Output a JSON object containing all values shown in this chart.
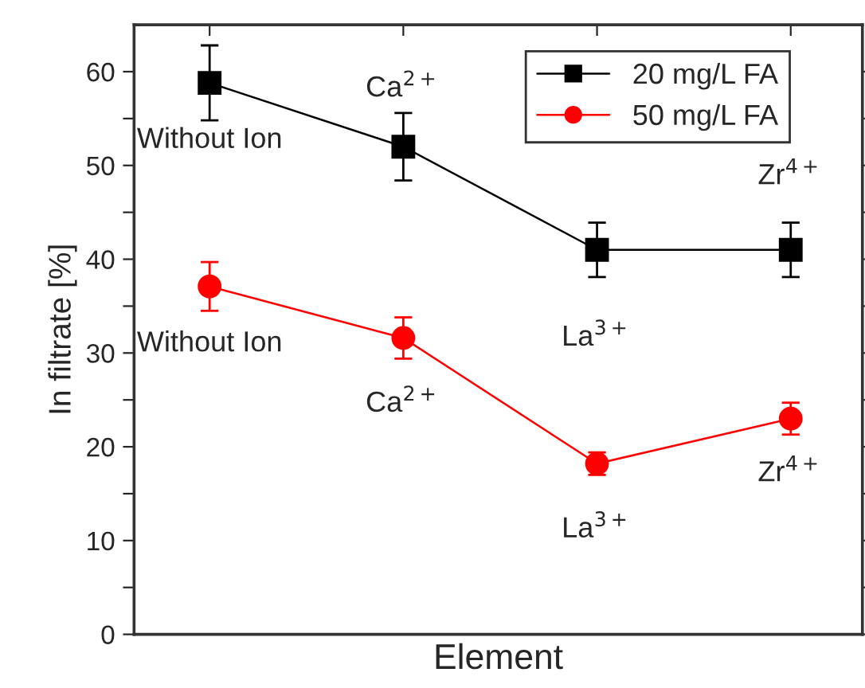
{
  "chart_data": {
    "type": "line",
    "xlabel": "Element",
    "ylabel": "In filtrate [%]",
    "categories": [
      null,
      null,
      null,
      null
    ],
    "series": [
      {
        "name": "20 mg/L FA",
        "color": "#000000",
        "marker": "square",
        "values": [
          58.8,
          52.0,
          41.0,
          41.0
        ],
        "errors": [
          4.0,
          3.6,
          2.9,
          2.9
        ]
      },
      {
        "name": "50 mg/L FA",
        "color": "#ff0000",
        "marker": "circle",
        "values": [
          37.1,
          31.6,
          18.2,
          23.0
        ],
        "errors": [
          2.6,
          2.2,
          1.2,
          1.7
        ]
      }
    ],
    "ylim": [
      0,
      65
    ],
    "yticks": [
      0,
      {
        "value": 5,
        "label": null
      },
      10,
      {
        "value": 15,
        "label": null
      },
      20,
      {
        "value": 25,
        "label": null
      },
      30,
      {
        "value": 35,
        "label": null
      },
      40,
      {
        "value": 45,
        "label": null
      },
      50,
      {
        "value": 55,
        "label": null
      },
      60
    ],
    "annotations": [
      {
        "text": "Without Ion",
        "y": 58.8
      },
      {
        "text": "Ca$^{2+}$",
        "y": 52.0
      },
      {
        "text": "La$^{3+}$",
        "y": 41.0
      },
      {
        "text": "Zr$^{4+}$",
        "y": 41.0
      },
      {
        "text": "Without Ion",
        "y": 37.1
      },
      {
        "text": "Ca$^{2+}$",
        "y": 31.6
      },
      {
        "text": "La$^{3+}$",
        "y": 18.2
      },
      {
        "text": "Zr$^{4+}$",
        "y": 23.0
      }
    ],
    "legend": "top right",
    "grid": false,
    "tick_labels": "y"
  }
}
